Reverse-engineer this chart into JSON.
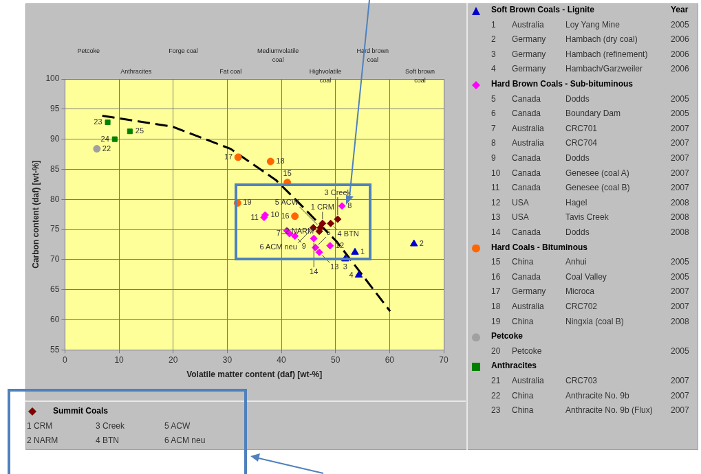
{
  "chart_data": {
    "type": "scatter",
    "xlabel": "Volatile matter content (daf) [wt-%]",
    "ylabel": "Carbon content (daf) [wt-%]",
    "xlim": [
      0,
      70
    ],
    "xticks": [
      0,
      10,
      20,
      30,
      40,
      50,
      60,
      70
    ],
    "ylim": [
      55,
      100
    ],
    "yticks": [
      55,
      60,
      65,
      70,
      75,
      80,
      85,
      90,
      95,
      100
    ],
    "grid": true,
    "legend": "right",
    "series": [
      {
        "name": "Soft Brown Coals - Lignite",
        "color": "#0000cc",
        "marker": "triangle",
        "x": [
          53.6,
          64.5,
          51.8,
          54.3
        ],
        "values": [
          71.2,
          72.6,
          70.1,
          67.4
        ]
      },
      {
        "name": "Hard Brown Coals - Sub-bituminous",
        "color": "#ff00ff",
        "marker": "diamond",
        "x": [
          46.3,
          41.0,
          41.5,
          51.2,
          42.5,
          37.0,
          36.8,
          49.0,
          47.0,
          46.0
        ],
        "values": [
          72.0,
          74.8,
          74.3,
          78.9,
          73.9,
          77.4,
          77.0,
          72.3,
          71.2,
          73.5
        ]
      },
      {
        "name": "Hard Coals - Bituminous",
        "color": "#ff6600",
        "marker": "circle",
        "x": [
          41.1,
          42.5,
          32.0,
          38.0,
          31.9
        ],
        "values": [
          82.8,
          77.2,
          87.0,
          86.3,
          79.4
        ]
      },
      {
        "name": "Petcoke",
        "color": "#a0a0a0",
        "marker": "circle",
        "x": [
          5.9
        ],
        "values": [
          88.4
        ]
      },
      {
        "name": "Anthracites",
        "color": "#008000",
        "marker": "square",
        "x": [
          7.9,
          9.2,
          12.0
        ],
        "values": [
          92.8,
          90.0,
          91.3
        ]
      },
      {
        "name": "Summit Coals",
        "color": "#800000",
        "marker": "diamond",
        "x": [
          47.6,
          47.0,
          50.4,
          49.1,
          47.2,
          45.9
        ],
        "values": [
          76.0,
          74.7,
          76.7,
          76.0,
          75.3,
          75.3
        ]
      },
      {
        "type": "line",
        "color": "#000000",
        "marker": "none",
        "line_style": "dashed",
        "x": [
          6.9,
          19.8,
          30.6,
          39.0,
          42.7,
          50.2,
          60.1
        ],
        "values": [
          93.9,
          92.1,
          88.4,
          83.2,
          79.9,
          73.0,
          61.4
        ]
      }
    ],
    "annotations": [
      "Petcoke",
      "Anthracites",
      "Forge coal",
      "Fat coal",
      "Mediumvolatile coal",
      "Highvolatile coal",
      "Hard brown coal",
      "Soft brown coal",
      {
        "text": "23",
        "x": 7.9,
        "y": 92.8
      },
      {
        "text": "25",
        "x": 12.0,
        "y": 91.3
      },
      {
        "text": "22",
        "x": 5.9,
        "y": 88.4
      },
      {
        "text": "24",
        "x": 9.2,
        "y": 90.0
      },
      {
        "text": "17",
        "x": 32.0,
        "y": 87.0
      },
      {
        "text": "18",
        "x": 38.0,
        "y": 86.3
      },
      {
        "text": "15",
        "x": 41.1,
        "y": 82.8
      },
      {
        "text": "19",
        "x": 31.9,
        "y": 79.4
      },
      {
        "text": "10",
        "x": 37.0,
        "y": 77.4
      },
      {
        "text": "11",
        "x": 36.8,
        "y": 77.0
      },
      {
        "text": "16",
        "x": 42.5,
        "y": 77.2
      },
      {
        "text": "8",
        "x": 51.2,
        "y": 78.9
      },
      {
        "text": "1 CRM",
        "x": 47.6,
        "y": 76.0
      },
      {
        "text": "3 Creek",
        "x": 50.4,
        "y": 76.7
      },
      {
        "text": "4 BTN",
        "x": 49.1,
        "y": 76.0
      },
      {
        "text": "6 ACM neu",
        "x": 45.9,
        "y": 75.3
      },
      {
        "text": "5 ACW",
        "x": 47.2,
        "y": 75.3
      },
      {
        "text": "2 NARM",
        "x": 47.0,
        "y": 74.7
      },
      {
        "text": "7",
        "x": 41.5,
        "y": 74.3
      },
      {
        "text": "9",
        "x": 42.5,
        "y": 73.9
      },
      {
        "text": "14",
        "x": 46.0,
        "y": 73.5
      },
      {
        "text": "12",
        "x": 49.0,
        "y": 72.3
      },
      {
        "text": "5",
        "x": 46.3,
        "y": 72.0
      },
      {
        "text": "13",
        "x": 47.0,
        "y": 71.2
      },
      {
        "text": "3",
        "x": 51.8,
        "y": 70.1
      },
      {
        "text": "1",
        "x": 53.6,
        "y": 71.2
      },
      {
        "text": "2",
        "x": 64.5,
        "y": 72.6
      },
      {
        "text": "4",
        "x": 54.3,
        "y": 67.4
      },
      "\t\t\tYear",
      "1\tAustralia\tLoy Yang Mine\t2005",
      "2\tGermany\tHambach (dry coal)\t2006",
      "3\tGermany\tHambach (refinement)\t2006",
      "4\tGermany\tHambach/Garzweiler\t2006",
      "5\tCanada\tDodds\t2005",
      "6\tCanada\tBoundary Dam\t2005",
      "7\tAustralia\tCRC701\t2007",
      "8\tAustralia\tCRC704\t2007",
      "9\tCanada\tDodds\t2007",
      "10\tCanada\tGenesee (coal A)\t2007",
      "11\tCanada\tGenesee (coal B)\t2007",
      "12\tUSA\tHagel\t2008",
      "13\tUSA\tTavis Creek\t2008",
      "14\tCanada\tDodds\t2008",
      "15\tChina\tAnhui\t2005",
      "16\tCanada\tCoal Valley\t2005",
      "17\tGermany\tMicroca\t2007",
      "18\tAustralia\tCRC702\t2007",
      "19\tChina\tNingxia (coal B)\t2008",
      "20\tPetcoke\t\t2005",
      "21\tAustralia\tCRC703\t2007",
      "22\tChina\tAnthracite No. 9b\t2007",
      "23\tChina\tAnthracite No. 9b (Flux)\t2007",
      "1 CRM",
      "2 NARM",
      "3 Creek",
      "4 BTN",
      "5 ACW",
      "6 ACM neu"
    ]
  }
}
